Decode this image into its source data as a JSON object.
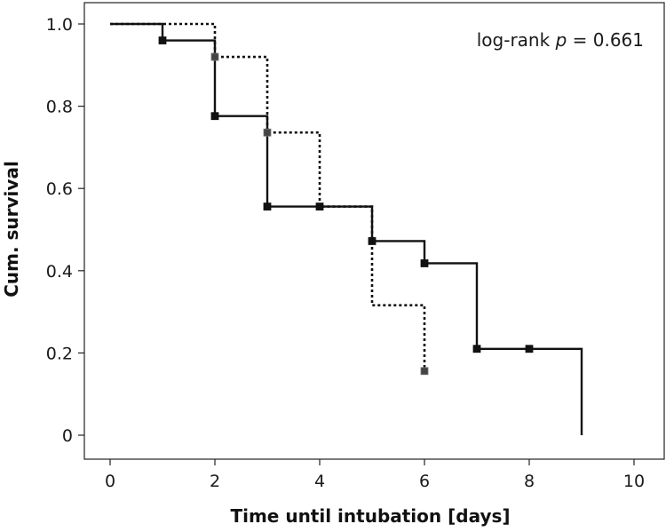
{
  "chart_data": {
    "type": "line",
    "title": "",
    "xlabel": "Time until intubation [days]",
    "ylabel": "Cum. survival",
    "xlim": [
      0,
      10
    ],
    "ylim": [
      0,
      1.0
    ],
    "x_ticks": [
      0,
      2,
      4,
      6,
      8,
      10
    ],
    "y_ticks": [
      0,
      0.2,
      0.4,
      0.6,
      0.8,
      1.0
    ],
    "x_tick_labels": [
      "0",
      "2",
      "4",
      "6",
      "8",
      "10"
    ],
    "y_tick_labels": [
      "0",
      "0.2",
      "0.4",
      "0.6",
      "0.8",
      "1.0"
    ],
    "grid": false,
    "annotation": {
      "prefix": "log-rank ",
      "italic": "p",
      "suffix": " = 0.661"
    },
    "series": [
      {
        "style": "solid",
        "color": "#111111",
        "steps": [
          [
            0,
            1.0
          ],
          [
            1,
            0.96
          ],
          [
            2,
            0.776
          ],
          [
            3,
            0.556
          ],
          [
            5,
            0.472
          ],
          [
            6,
            0.418
          ],
          [
            7,
            0.21
          ],
          [
            9,
            0.0
          ]
        ],
        "end_x": 9,
        "censored": [
          [
            1,
            0.96
          ],
          [
            2,
            0.776
          ],
          [
            3,
            0.556
          ],
          [
            4,
            0.556
          ],
          [
            5,
            0.472
          ],
          [
            6,
            0.418
          ],
          [
            7,
            0.21
          ],
          [
            8,
            0.21
          ]
        ]
      },
      {
        "style": "dotted",
        "color": "#111111",
        "steps": [
          [
            0,
            1.0
          ],
          [
            2,
            0.92
          ],
          [
            3,
            0.736
          ],
          [
            4,
            0.556
          ],
          [
            5,
            0.316
          ],
          [
            6,
            0.156
          ]
        ],
        "end_x": 6,
        "censored": [
          [
            2,
            0.92
          ],
          [
            3,
            0.736
          ],
          [
            6,
            0.156
          ]
        ]
      }
    ]
  }
}
